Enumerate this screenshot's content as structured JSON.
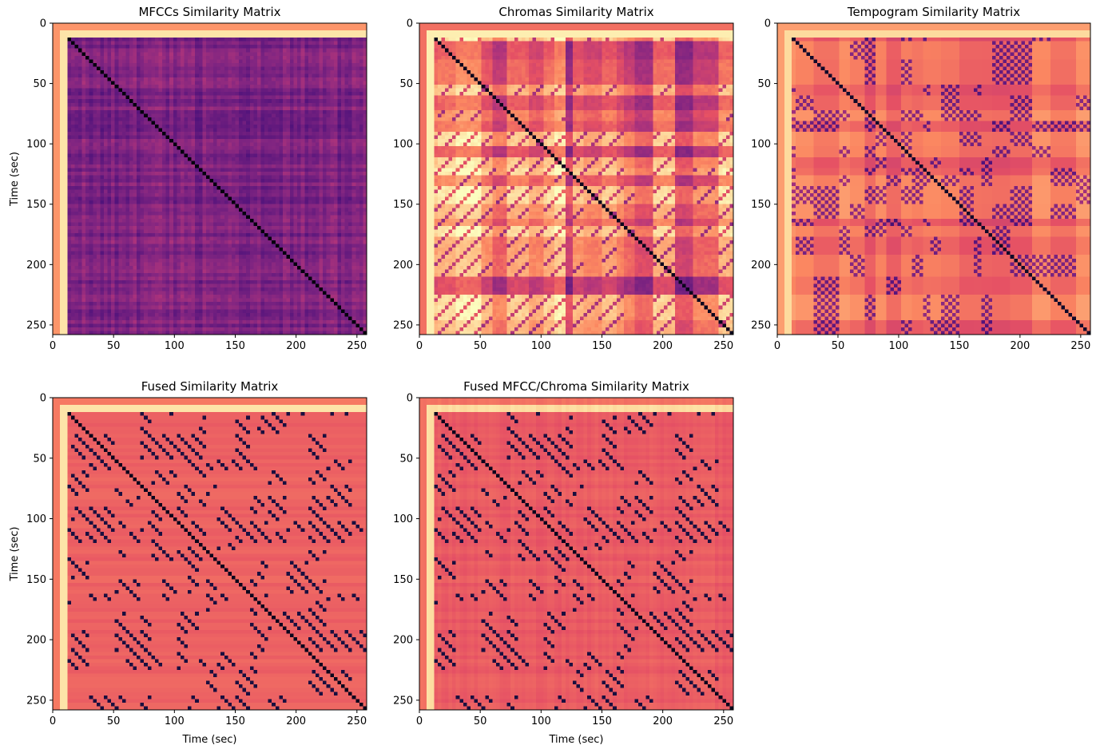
{
  "figure": {
    "panels": [
      {
        "id": "mfcc",
        "title": "MFCCs Similarity Matrix",
        "xlabel": "",
        "ylabel": "Time (sec)"
      },
      {
        "id": "chroma",
        "title": "Chromas Similarity Matrix",
        "xlabel": "",
        "ylabel": ""
      },
      {
        "id": "tempogram",
        "title": "Tempogram Similarity Matrix",
        "xlabel": "",
        "ylabel": ""
      },
      {
        "id": "fused",
        "title": "Fused Similarity Matrix",
        "xlabel": "Time (sec)",
        "ylabel": "Time (sec)"
      },
      {
        "id": "fused-mfcc-chroma",
        "title": "Fused MFCC/Chroma Similarity Matrix",
        "xlabel": "Time (sec)",
        "ylabel": ""
      }
    ]
  },
  "chart_data": [
    {
      "type": "heatmap",
      "title": "MFCCs Similarity Matrix",
      "xlabel": "",
      "ylabel": "Time (sec)",
      "xlim": [
        0,
        258
      ],
      "ylim": [
        258,
        0
      ],
      "xticks": [
        0,
        50,
        100,
        150,
        200,
        250
      ],
      "yticks": [
        0,
        50,
        100,
        150,
        200,
        250
      ],
      "colormap": "magma",
      "colors": {
        "low": "#1f0c48",
        "mid": "#b63679",
        "high": "#fcfdbf"
      }
    },
    {
      "type": "heatmap",
      "title": "Chromas Similarity Matrix",
      "xlabel": "",
      "ylabel": "",
      "xlim": [
        0,
        258
      ],
      "ylim": [
        258,
        0
      ],
      "xticks": [
        0,
        50,
        100,
        150,
        200,
        250
      ],
      "yticks": [
        0,
        50,
        100,
        150,
        200,
        250
      ],
      "colormap": "magma"
    },
    {
      "type": "heatmap",
      "title": "Tempogram Similarity Matrix",
      "xlabel": "",
      "ylabel": "",
      "xlim": [
        0,
        258
      ],
      "ylim": [
        258,
        0
      ],
      "xticks": [
        0,
        50,
        100,
        150,
        200,
        250
      ],
      "yticks": [
        0,
        50,
        100,
        150,
        200,
        250
      ],
      "colormap": "magma"
    },
    {
      "type": "heatmap",
      "title": "Fused Similarity Matrix",
      "xlabel": "Time (sec)",
      "ylabel": "Time (sec)",
      "xlim": [
        0,
        258
      ],
      "ylim": [
        258,
        0
      ],
      "xticks": [
        0,
        50,
        100,
        150,
        200,
        250
      ],
      "yticks": [
        0,
        50,
        100,
        150,
        200,
        250
      ],
      "colormap": "magma"
    },
    {
      "type": "heatmap",
      "title": "Fused MFCC/Chroma Similarity Matrix",
      "xlabel": "Time (sec)",
      "ylabel": "",
      "xlim": [
        0,
        258
      ],
      "ylim": [
        258,
        0
      ],
      "xticks": [
        0,
        50,
        100,
        150,
        200,
        250
      ],
      "yticks": [
        0,
        50,
        100,
        150,
        200,
        250
      ],
      "colormap": "magma"
    }
  ]
}
